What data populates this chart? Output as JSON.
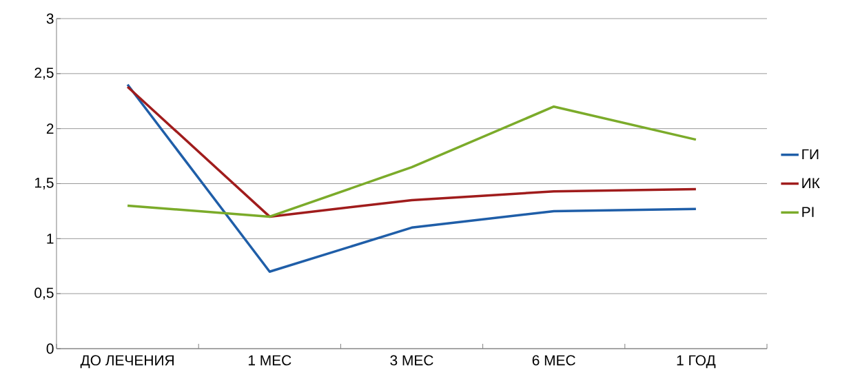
{
  "chart_data": {
    "type": "line",
    "categories": [
      "ДО ЛЕЧЕНИЯ",
      "1 МЕС",
      "3 МЕС",
      "6 МЕС",
      "1 ГОД"
    ],
    "series": [
      {
        "name": "ГИ",
        "color": "#1f5ea8",
        "values": [
          2.4,
          0.7,
          1.1,
          1.25,
          1.27
        ]
      },
      {
        "name": "ИК",
        "color": "#a01c1c",
        "values": [
          2.38,
          1.2,
          1.35,
          1.43,
          1.45
        ]
      },
      {
        "name": "PI",
        "color": "#7bab2a",
        "values": [
          1.3,
          1.2,
          1.65,
          2.2,
          1.9
        ]
      }
    ],
    "ylim": [
      0,
      3
    ],
    "yticks": [
      0,
      {
        "value": 0.5,
        "label": "0,5"
      },
      1,
      {
        "value": 1.5,
        "label": "1,5"
      },
      2,
      {
        "value": 2.5,
        "label": "2,5"
      },
      3
    ],
    "grid": "y",
    "legend": "right"
  }
}
